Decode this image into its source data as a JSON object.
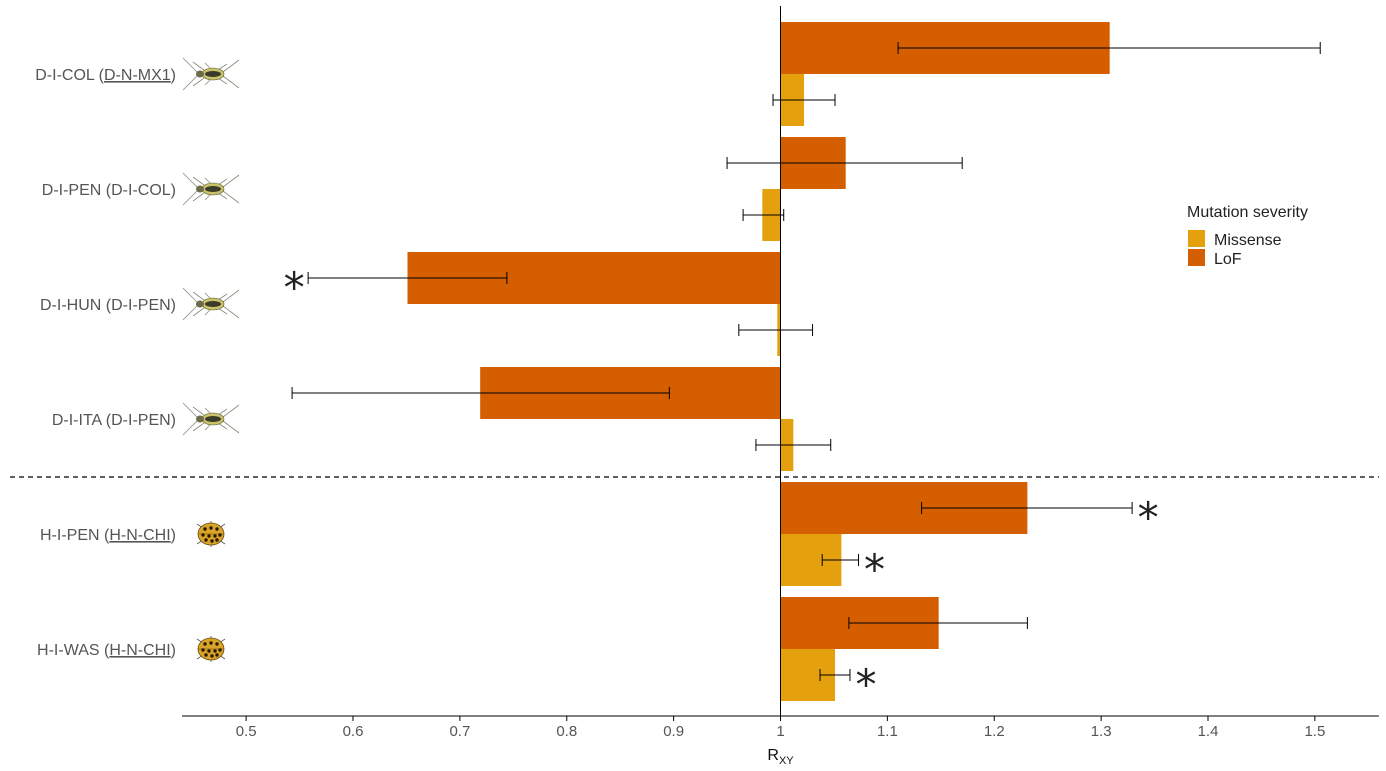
{
  "chart_data": {
    "type": "bar",
    "orientation": "horizontal",
    "xlabel_main": "R",
    "xlabel_sub": "XY",
    "xlim": [
      0.44,
      1.56
    ],
    "reference_line": 1,
    "xticks": [
      0.5,
      0.6,
      0.7,
      0.8,
      0.9,
      1,
      1.1,
      1.2,
      1.3,
      1.4,
      1.5
    ],
    "xtick_labels": [
      "0.5",
      "0.6",
      "0.7",
      "0.8",
      "0.9",
      "1",
      "1.1",
      "1.2",
      "1.3",
      "1.4",
      "1.5"
    ],
    "legend": {
      "title": "Mutation severity",
      "position": "right",
      "entries": [
        {
          "name": "Missense",
          "color": "#E5A00D"
        },
        {
          "name": "LoF",
          "color": "#D55E00"
        }
      ]
    },
    "separator_after_index": 3,
    "categories": [
      {
        "name": "D-I-COL",
        "ref": "D-N-MX1",
        "ref_underlined": true,
        "icon": "beetle-icon"
      },
      {
        "name": "D-I-PEN",
        "ref": "D-I-COL",
        "ref_underlined": false,
        "icon": "beetle-icon"
      },
      {
        "name": "D-I-HUN",
        "ref": "D-I-PEN",
        "ref_underlined": false,
        "icon": "beetle-icon"
      },
      {
        "name": "D-I-ITA",
        "ref": "D-I-PEN",
        "ref_underlined": false,
        "icon": "beetle-icon"
      },
      {
        "name": "H-I-PEN",
        "ref": "H-N-CHI",
        "ref_underlined": true,
        "icon": "ladybird-icon"
      },
      {
        "name": "H-I-WAS",
        "ref": "H-N-CHI",
        "ref_underlined": true,
        "icon": "ladybird-icon"
      }
    ],
    "series": [
      {
        "name": "LoF",
        "color": "#D55E00",
        "values": [
          1.308,
          1.061,
          0.651,
          0.719,
          1.231,
          1.148
        ],
        "err_low": [
          1.11,
          0.95,
          0.558,
          0.543,
          1.132,
          1.064
        ],
        "err_high": [
          1.505,
          1.17,
          0.744,
          0.896,
          1.329,
          1.231
        ],
        "significant": [
          false,
          false,
          true,
          false,
          true,
          false
        ],
        "star_side": [
          "",
          "",
          "left",
          "",
          "right",
          ""
        ]
      },
      {
        "name": "Missense",
        "color": "#E5A00D",
        "values": [
          1.022,
          0.983,
          0.997,
          1.012,
          1.057,
          1.051
        ],
        "err_low": [
          0.993,
          0.965,
          0.961,
          0.977,
          1.039,
          1.037
        ],
        "err_high": [
          1.051,
          1.003,
          1.03,
          1.047,
          1.073,
          1.065
        ],
        "significant": [
          false,
          false,
          false,
          false,
          true,
          true
        ],
        "star_side": [
          "",
          "",
          "",
          "",
          "right",
          "right"
        ]
      }
    ],
    "star_symbol": "*"
  }
}
